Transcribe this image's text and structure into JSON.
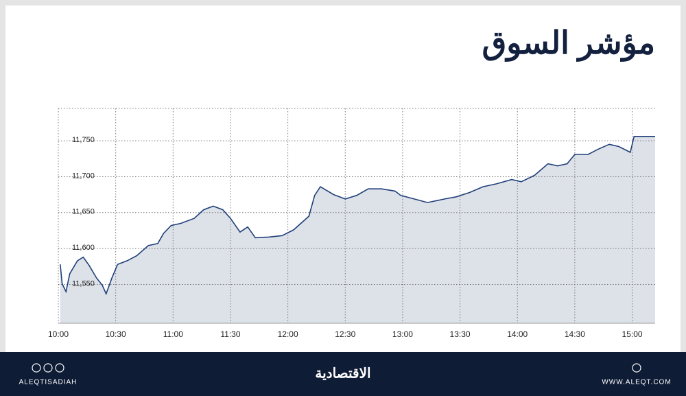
{
  "header": {
    "title": "مؤشر السوق"
  },
  "chart_data": {
    "type": "area",
    "x": [
      "10:01",
      "10:02",
      "10:04",
      "10:06",
      "10:10",
      "10:13",
      "10:16",
      "10:20",
      "10:23",
      "10:25",
      "10:28",
      "10:31",
      "10:36",
      "10:41",
      "10:47",
      "10:52",
      "10:55",
      "10:59",
      "11:04",
      "11:11",
      "11:16",
      "11:21",
      "11:26",
      "11:30",
      "11:35",
      "11:39",
      "11:43",
      "11:50",
      "11:57",
      "12:03",
      "12:11",
      "12:14",
      "12:17",
      "12:24",
      "12:30",
      "12:36",
      "12:42",
      "12:49",
      "12:56",
      "12:59",
      "13:06",
      "13:13",
      "13:22",
      "13:28",
      "13:35",
      "13:42",
      "13:49",
      "13:57",
      "14:02",
      "14:09",
      "14:16",
      "14:21",
      "14:26",
      "14:30",
      "14:37",
      "14:42",
      "14:48",
      "14:53",
      "14:59",
      "15:01",
      "15:12"
    ],
    "values": [
      11578,
      11551,
      11540,
      11565,
      11583,
      11588,
      11577,
      11559,
      11549,
      11537,
      11559,
      11578,
      11583,
      11590,
      11604,
      11607,
      11621,
      11632,
      11635,
      11642,
      11654,
      11659,
      11654,
      11642,
      11623,
      11630,
      11615,
      11616,
      11618,
      11626,
      11645,
      11674,
      11686,
      11675,
      11669,
      11674,
      11683,
      11683,
      11680,
      11674,
      11669,
      11664,
      11669,
      11672,
      11678,
      11686,
      11690,
      11696,
      11693,
      11702,
      11718,
      11715,
      11718,
      11731,
      11731,
      11738,
      11745,
      11742,
      11734,
      11756,
      11756
    ],
    "color": "#1f3f7a",
    "fill_color": "#dde1e8",
    "xlim": [
      "10:00",
      "15:12"
    ],
    "xticks": [
      "10:00",
      "10:30",
      "11:00",
      "11:30",
      "12:00",
      "12:30",
      "13:00",
      "13:30",
      "14:00",
      "14:30",
      "15:00"
    ],
    "ylim": [
      11496,
      11795
    ],
    "yticks": [
      {
        "value": 11550,
        "label": "11,550"
      },
      {
        "value": 11600,
        "label": "11,600"
      },
      {
        "value": 11650,
        "label": "11,650"
      },
      {
        "value": 11700,
        "label": "11,700"
      },
      {
        "value": 11750,
        "label": "11,750"
      }
    ],
    "grid": true
  },
  "footer": {
    "handle": "ALEQTISADIAH",
    "brand": "الاقتصادية",
    "website": "WWW.ALEQT.COM"
  }
}
